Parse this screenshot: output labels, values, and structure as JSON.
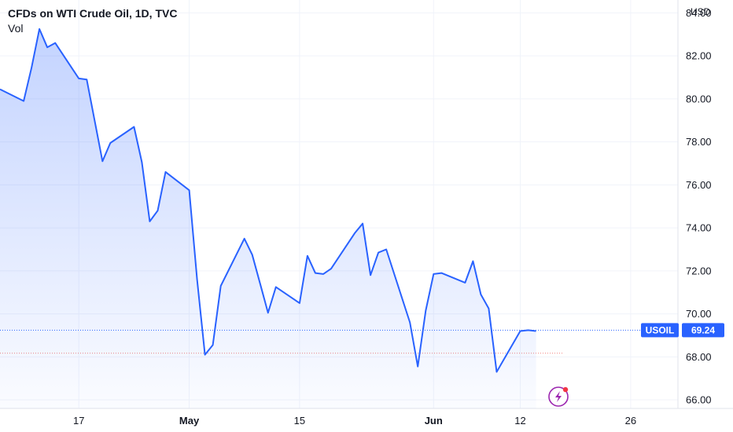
{
  "header": {
    "title": "CFDs on WTI Crude Oil, 1D, TVC",
    "volume_label": "Vol"
  },
  "price_scale": {
    "currency": "USD"
  },
  "last_price": {
    "symbol": "USOIL",
    "value": "69.24"
  },
  "colors": {
    "line": "#2962ff",
    "fill_top": "#2962ff",
    "tag_background": "#2962ff",
    "grid": "#f0f3fa",
    "reference_line": "#ef5350"
  },
  "icons": {
    "replay": "lightning-icon"
  },
  "chart_data": {
    "type": "area",
    "title": "CFDs on WTI Crude Oil, 1D, TVC",
    "ylim": [
      65.6,
      84.6
    ],
    "yticks": [
      66,
      68,
      70,
      72,
      74,
      76,
      78,
      80,
      82,
      84
    ],
    "ytick_labels": [
      "66.00",
      "68.00",
      "70.00",
      "72.00",
      "74.00",
      "76.00",
      "78.00",
      "80.00",
      "82.00",
      "84.00"
    ],
    "x_domain": [
      "2023-04-07",
      "2023-07-02"
    ],
    "xticks": [
      {
        "date": "2023-04-17",
        "label": "17"
      },
      {
        "date": "2023-05-01",
        "label": "May"
      },
      {
        "date": "2023-05-15",
        "label": "15"
      },
      {
        "date": "2023-06-01",
        "label": "Jun"
      },
      {
        "date": "2023-06-12",
        "label": "12"
      },
      {
        "date": "2023-06-26",
        "label": "26"
      }
    ],
    "reference_level": 68.17,
    "series": [
      {
        "x": [
          "2023-04-07",
          "2023-04-10",
          "2023-04-11",
          "2023-04-12",
          "2023-04-13",
          "2023-04-14",
          "2023-04-17",
          "2023-04-18",
          "2023-04-19",
          "2023-04-20",
          "2023-04-21",
          "2023-04-24",
          "2023-04-25",
          "2023-04-26",
          "2023-04-27",
          "2023-04-28",
          "2023-05-01",
          "2023-05-02",
          "2023-05-03",
          "2023-05-04",
          "2023-05-05",
          "2023-05-08",
          "2023-05-09",
          "2023-05-10",
          "2023-05-11",
          "2023-05-12",
          "2023-05-15",
          "2023-05-16",
          "2023-05-17",
          "2023-05-18",
          "2023-05-19",
          "2023-05-22",
          "2023-05-23",
          "2023-05-24",
          "2023-05-25",
          "2023-05-26",
          "2023-05-29",
          "2023-05-30",
          "2023-05-31",
          "2023-06-01",
          "2023-06-02",
          "2023-06-05",
          "2023-06-06",
          "2023-06-07",
          "2023-06-08",
          "2023-06-09",
          "2023-06-12",
          "2023-06-13",
          "2023-06-14"
        ],
        "values": [
          80.45,
          79.9,
          81.45,
          83.25,
          82.4,
          82.6,
          80.95,
          80.9,
          79.0,
          77.1,
          77.95,
          78.7,
          77.05,
          74.3,
          74.8,
          76.6,
          75.75,
          71.6,
          68.1,
          68.55,
          71.3,
          73.5,
          72.75,
          71.4,
          70.05,
          71.25,
          70.5,
          72.7,
          71.9,
          71.85,
          72.1,
          73.75,
          74.2,
          71.8,
          72.85,
          73.0,
          69.6,
          67.55,
          70.15,
          71.85,
          71.9,
          71.45,
          72.45,
          70.9,
          70.25,
          67.3,
          69.2,
          69.24,
          69.2
        ]
      }
    ],
    "grid": true
  }
}
